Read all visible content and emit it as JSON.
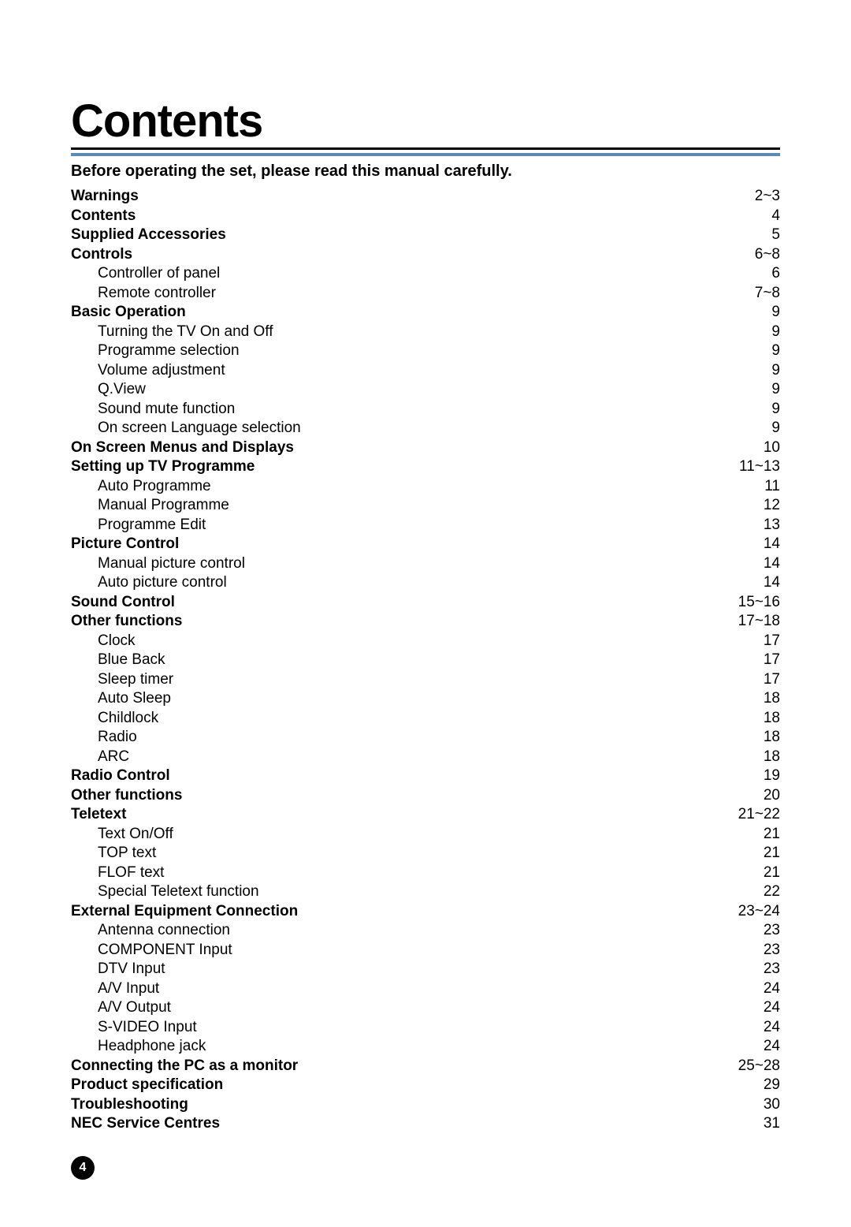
{
  "title": "Contents",
  "intro": "Before operating the set, please read this manual carefully.",
  "page_number": "4",
  "colors": {
    "rule": "#5b8bb5",
    "text": "#000000",
    "background": "#ffffff",
    "badge_bg": "#000000",
    "badge_fg": "#ffffff"
  },
  "toc": [
    {
      "label": "Warnings",
      "page": "2~3",
      "bold": true,
      "indent": false
    },
    {
      "label": "Contents",
      "page": "4",
      "bold": true,
      "indent": false
    },
    {
      "label": "Supplied Accessories",
      "page": "5",
      "bold": true,
      "indent": false
    },
    {
      "label": "Controls",
      "page": "6~8",
      "bold": true,
      "indent": false
    },
    {
      "label": "Controller of panel",
      "page": "6",
      "bold": false,
      "indent": true
    },
    {
      "label": "Remote controller",
      "page": "7~8",
      "bold": false,
      "indent": true
    },
    {
      "label": "Basic Operation",
      "page": "9",
      "bold": true,
      "indent": false
    },
    {
      "label": "Turning the TV On and Off",
      "page": "9",
      "bold": false,
      "indent": true
    },
    {
      "label": "Programme selection",
      "page": "9",
      "bold": false,
      "indent": true
    },
    {
      "label": "Volume adjustment",
      "page": "9",
      "bold": false,
      "indent": true
    },
    {
      "label": "Q.View",
      "page": "9",
      "bold": false,
      "indent": true
    },
    {
      "label": "Sound mute function",
      "page": "9",
      "bold": false,
      "indent": true
    },
    {
      "label": "On screen Language selection",
      "page": "9",
      "bold": false,
      "indent": true
    },
    {
      "label": "On Screen Menus and Displays",
      "page": "10",
      "bold": true,
      "indent": false
    },
    {
      "label": "Setting up TV Programme",
      "page": "11~13",
      "bold": true,
      "indent": false
    },
    {
      "label": "Auto Programme",
      "page": "11",
      "bold": false,
      "indent": true
    },
    {
      "label": "Manual Programme",
      "page": "12",
      "bold": false,
      "indent": true
    },
    {
      "label": "Programme Edit",
      "page": "13",
      "bold": false,
      "indent": true
    },
    {
      "label": "Picture Control",
      "page": "14",
      "bold": true,
      "indent": false
    },
    {
      "label": "Manual picture control",
      "page": "14",
      "bold": false,
      "indent": true
    },
    {
      "label": "Auto picture control",
      "page": "14",
      "bold": false,
      "indent": true
    },
    {
      "label": "Sound Control",
      "page": "15~16",
      "bold": true,
      "indent": false
    },
    {
      "label": "Other functions",
      "page": "17~18",
      "bold": true,
      "indent": false
    },
    {
      "label": "Clock",
      "page": "17",
      "bold": false,
      "indent": true
    },
    {
      "label": "Blue Back",
      "page": "17",
      "bold": false,
      "indent": true
    },
    {
      "label": "Sleep timer",
      "page": "17",
      "bold": false,
      "indent": true
    },
    {
      "label": "Auto Sleep",
      "page": "18",
      "bold": false,
      "indent": true
    },
    {
      "label": "Childlock",
      "page": "18",
      "bold": false,
      "indent": true
    },
    {
      "label": "Radio",
      "page": "18",
      "bold": false,
      "indent": true
    },
    {
      "label": "ARC",
      "page": "18",
      "bold": false,
      "indent": true
    },
    {
      "label": "Radio Control",
      "page": "19",
      "bold": true,
      "indent": false
    },
    {
      "label": "Other functions",
      "page": "20",
      "bold": true,
      "indent": false
    },
    {
      "label": "Teletext",
      "page": "21~22",
      "bold": true,
      "indent": false
    },
    {
      "label": "Text On/Off",
      "page": "21",
      "bold": false,
      "indent": true
    },
    {
      "label": "TOP text",
      "page": "21",
      "bold": false,
      "indent": true
    },
    {
      "label": "FLOF text",
      "page": "21",
      "bold": false,
      "indent": true
    },
    {
      "label": "Special Teletext function",
      "page": "22",
      "bold": false,
      "indent": true
    },
    {
      "label": "External Equipment Connection",
      "page": "23~24",
      "bold": true,
      "indent": false
    },
    {
      "label": "Antenna connection",
      "page": "23",
      "bold": false,
      "indent": true
    },
    {
      "label": "COMPONENT Input",
      "page": "23",
      "bold": false,
      "indent": true
    },
    {
      "label": "DTV Input",
      "page": "23",
      "bold": false,
      "indent": true
    },
    {
      "label": "A/V Input",
      "page": "24",
      "bold": false,
      "indent": true
    },
    {
      "label": "A/V Output",
      "page": "24",
      "bold": false,
      "indent": true
    },
    {
      "label": "S-VIDEO Input",
      "page": "24",
      "bold": false,
      "indent": true
    },
    {
      "label": "Headphone jack",
      "page": "24",
      "bold": false,
      "indent": true
    },
    {
      "label": "Connecting the PC as a monitor",
      "page": "25~28",
      "bold": true,
      "indent": false
    },
    {
      "label": "Product specification",
      "page": "29",
      "bold": true,
      "indent": false
    },
    {
      "label": "Troubleshooting",
      "page": "30",
      "bold": true,
      "indent": false
    },
    {
      "label": "NEC Service Centres",
      "page": "31",
      "bold": true,
      "indent": false
    }
  ]
}
